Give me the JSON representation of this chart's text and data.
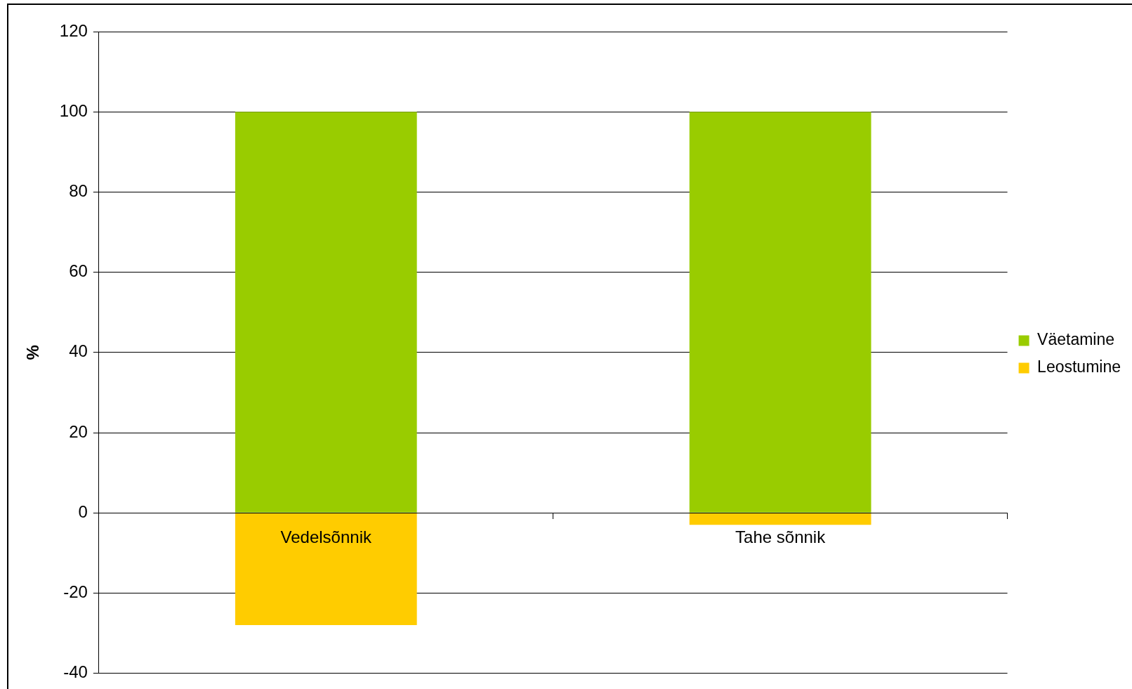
{
  "chart_data": {
    "type": "bar",
    "categories": [
      "Vedelsõnnik",
      "Tahe sõnnik"
    ],
    "series": [
      {
        "name": "Väetamine",
        "color": "#99cc00",
        "values": [
          100,
          100
        ]
      },
      {
        "name": "Leostumine",
        "color": "#ffcc00",
        "values": [
          -28,
          -3
        ]
      }
    ],
    "stacked": true,
    "ylabel": "%",
    "ylim": [
      -40,
      120
    ],
    "yticks": [
      -40,
      -20,
      0,
      20,
      40,
      60,
      80,
      100,
      120
    ],
    "grid": "y",
    "legend": "right"
  }
}
